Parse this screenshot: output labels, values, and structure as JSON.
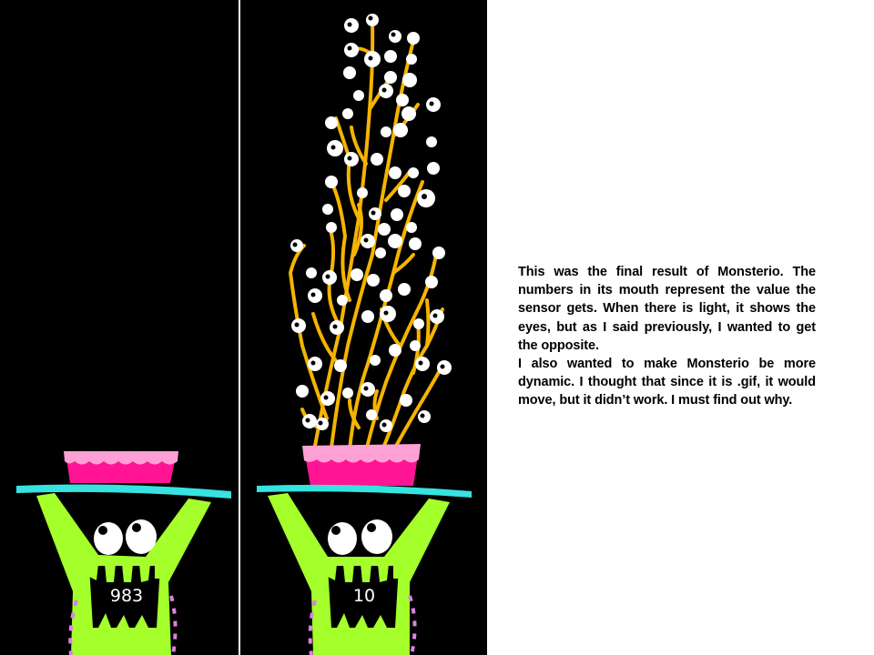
{
  "panels": [
    {
      "sensor_value": "983",
      "eyes_shown": false
    },
    {
      "sensor_value": "10",
      "eyes_shown": true
    }
  ],
  "colors": {
    "background": "#000000",
    "monster_body": "#a4ff2b",
    "plate": "#36e3e0",
    "pot": "#ff1493",
    "pot_frosting": "#ffa0d5",
    "stems": "#f5b400",
    "eyes": "#ffffff"
  },
  "caption": {
    "paragraph_1": "This was the final result of Monsterio. The numbers in its mouth represent the value the sensor gets. When there is light, it shows the eyes, but as I said previously, I wanted to get the opposite.",
    "paragraph_2": "I also wanted to make Monsterio be more dynamic. I thought that since it is .gif, it would move, but it didn’t work. I must find out why."
  }
}
